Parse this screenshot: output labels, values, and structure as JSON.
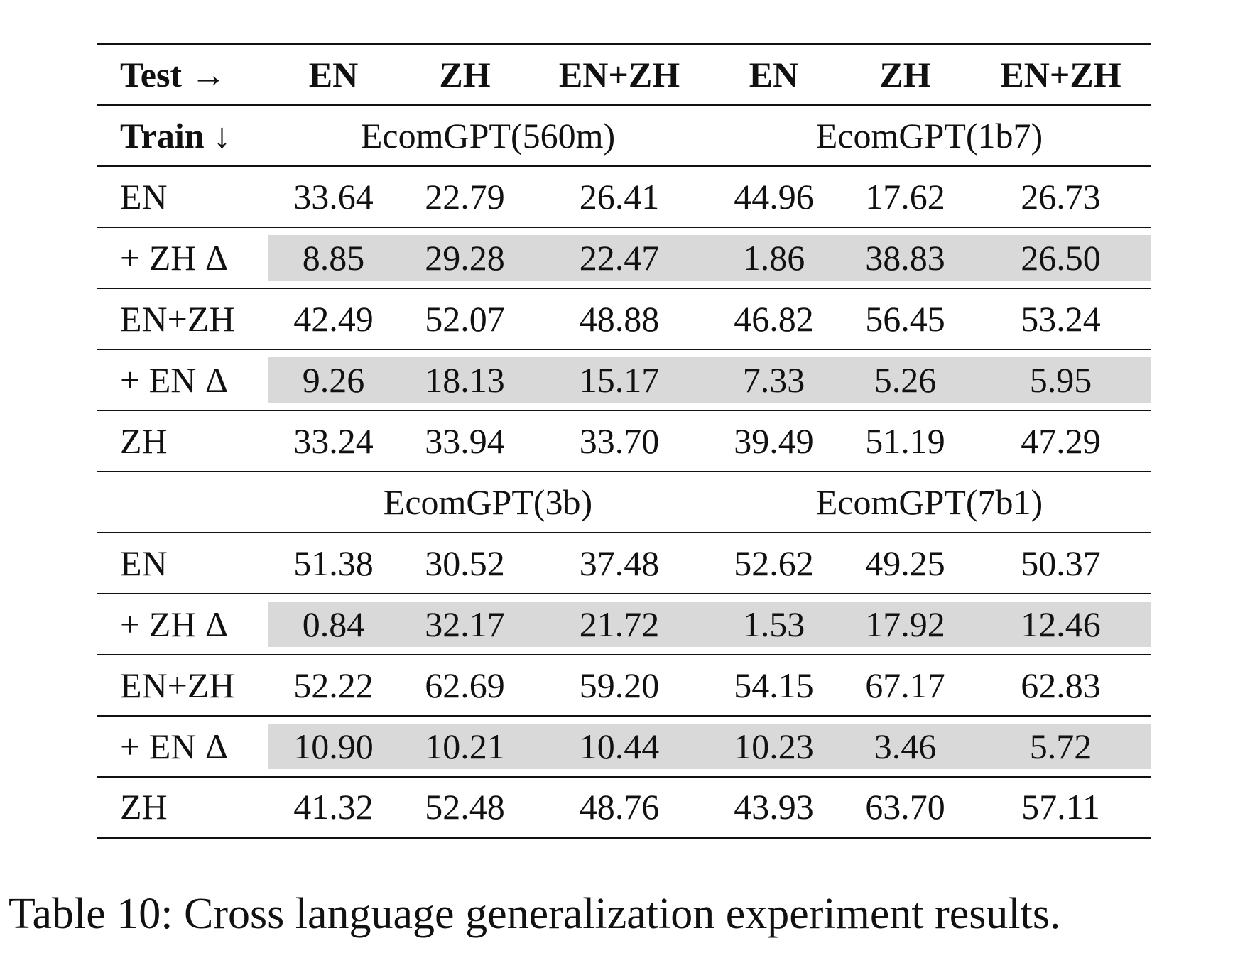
{
  "table": {
    "header": {
      "corner": "Test →",
      "cols": [
        "EN",
        "ZH",
        "EN+ZH",
        "EN",
        "ZH",
        "EN+ZH"
      ]
    },
    "train_label": "Train ↓",
    "section1": {
      "model_a": "EcomGPT(560m)",
      "model_b": "EcomGPT(1b7)",
      "rows": [
        {
          "label": "EN",
          "values": [
            "33.64",
            "22.79",
            "26.41",
            "44.96",
            "17.62",
            "26.73"
          ]
        },
        {
          "label": "+ ZH Δ",
          "values": [
            "8.85",
            "29.28",
            "22.47",
            "1.86",
            "38.83",
            "26.50"
          ]
        },
        {
          "label": "EN+ZH",
          "values": [
            "42.49",
            "52.07",
            "48.88",
            "46.82",
            "56.45",
            "53.24"
          ]
        },
        {
          "label": "+ EN Δ",
          "values": [
            "9.26",
            "18.13",
            "15.17",
            "7.33",
            "5.26",
            "5.95"
          ]
        },
        {
          "label": "ZH",
          "values": [
            "33.24",
            "33.94",
            "33.70",
            "39.49",
            "51.19",
            "47.29"
          ]
        }
      ]
    },
    "section2": {
      "model_a": "EcomGPT(3b)",
      "model_b": "EcomGPT(7b1)",
      "rows": [
        {
          "label": "EN",
          "values": [
            "51.38",
            "30.52",
            "37.48",
            "52.62",
            "49.25",
            "50.37"
          ]
        },
        {
          "label": "+ ZH Δ",
          "values": [
            "0.84",
            "32.17",
            "21.72",
            "1.53",
            "17.92",
            "12.46"
          ]
        },
        {
          "label": "EN+ZH",
          "values": [
            "52.22",
            "62.69",
            "59.20",
            "54.15",
            "67.17",
            "62.83"
          ]
        },
        {
          "label": "+ EN Δ",
          "values": [
            "10.90",
            "10.21",
            "10.44",
            "10.23",
            "3.46",
            "5.72"
          ]
        },
        {
          "label": "ZH",
          "values": [
            "41.32",
            "52.48",
            "48.76",
            "43.93",
            "63.70",
            "57.11"
          ]
        }
      ]
    }
  },
  "caption": "Table 10: Cross language generalization experiment results."
}
